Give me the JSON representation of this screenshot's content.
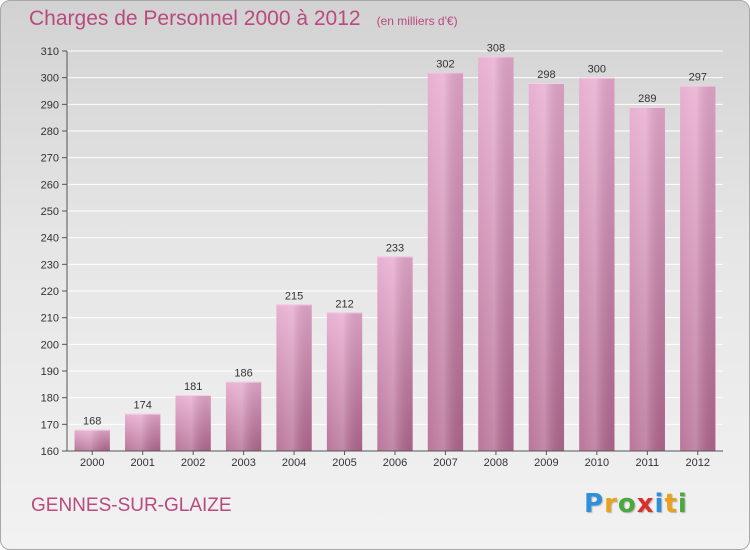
{
  "header": {
    "title": "Charges de Personnel 2000 à 2012",
    "unit": "(en milliers d'€)"
  },
  "commune": "GENNES-SUR-GLAIZE",
  "logo": {
    "text": "Proxiti",
    "letters": [
      {
        "ch": "P",
        "color": "#2f8fd8"
      },
      {
        "ch": "r",
        "color": "#e8a21c"
      },
      {
        "ch": "o",
        "color": "#4ba83c"
      },
      {
        "ch": "x",
        "color": "#d8302c"
      },
      {
        "ch": "i",
        "color": "#2f8fd8"
      },
      {
        "ch": "t",
        "color": "#e8a21c"
      },
      {
        "ch": "i",
        "color": "#4ba83c"
      }
    ]
  },
  "colors": {
    "accent": "#b9497f",
    "bar_top": "#e6a8cd",
    "bar_bottom": "#b2678f",
    "grid": "#ffffff",
    "axis_text": "#333333"
  },
  "chart_data": {
    "type": "bar",
    "categories": [
      "2000",
      "2001",
      "2002",
      "2003",
      "2004",
      "2005",
      "2006",
      "2007",
      "2008",
      "2009",
      "2010",
      "2011",
      "2012"
    ],
    "values": [
      168,
      174,
      181,
      186,
      215,
      212,
      233,
      302,
      308,
      298,
      300,
      289,
      297
    ],
    "ylim": [
      160,
      310
    ],
    "yticks": [
      160,
      170,
      180,
      190,
      200,
      210,
      220,
      230,
      240,
      250,
      260,
      270,
      280,
      290,
      300,
      310
    ],
    "grid": true,
    "data_labels": true,
    "legend": "none"
  }
}
